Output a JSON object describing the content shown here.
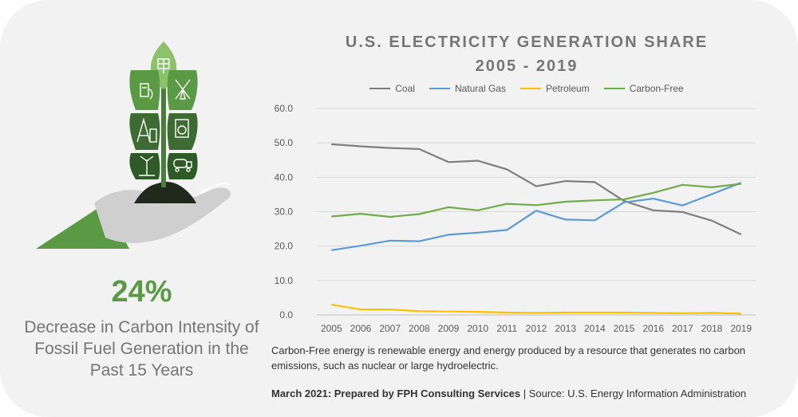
{
  "stat": {
    "value": "24%",
    "description": "Decrease in Carbon Intensity of Fossil Fuel Generation in the Past 15 Years"
  },
  "title": {
    "line1": "U.S. ELECTRICITY GENERATION SHARE",
    "line2": "2005 - 2019"
  },
  "note": "Carbon-Free energy is renewable energy and energy produced by a resource that generates no carbon emissions, such as nuclear or large hydroelectric.",
  "credit": {
    "prepared_by": "March 2021: Prepared by FPH Consulting Services",
    "separator": " | ",
    "source": "Source: U.S. Energy Information Administration"
  },
  "colors": {
    "accent_green": "#5b9a44",
    "dark_green": "#3d6b32",
    "light_green": "#8bc26b",
    "hand_gray": "#cfcfcf",
    "soil": "#1f2a1d"
  },
  "icons": [
    "solar-panel-icon",
    "ev-charger-icon",
    "windmill-icon",
    "oil-derrick-icon",
    "washer-icon",
    "wind-turbine-icon",
    "tanker-truck-icon"
  ],
  "chart_data": {
    "type": "line",
    "title": "U.S. ELECTRICITY GENERATION SHARE 2005 - 2019",
    "categories": [
      "2005",
      "2006",
      "2007",
      "2008",
      "2009",
      "2010",
      "2011",
      "2012",
      "2013",
      "2014",
      "2015",
      "2016",
      "2017",
      "2018",
      "2019"
    ],
    "ylim": [
      0,
      60
    ],
    "yticks": [
      "0.0",
      "10.0",
      "20.0",
      "30.0",
      "40.0",
      "50.0",
      "60.0"
    ],
    "grid": true,
    "legend_position": "top",
    "series": [
      {
        "name": "Coal",
        "color": "#7f7f7f",
        "values": [
          49.6,
          49.0,
          48.5,
          48.2,
          44.4,
          44.8,
          42.3,
          37.4,
          38.9,
          38.6,
          33.1,
          30.4,
          29.9,
          27.4,
          23.4
        ]
      },
      {
        "name": "Natural Gas",
        "color": "#5b9bd5",
        "values": [
          18.8,
          20.1,
          21.6,
          21.4,
          23.3,
          23.9,
          24.7,
          30.3,
          27.7,
          27.5,
          32.7,
          33.8,
          31.8,
          35.1,
          38.4
        ]
      },
      {
        "name": "Petroleum",
        "color": "#ffc000",
        "values": [
          3.0,
          1.6,
          1.6,
          1.1,
          1.0,
          0.9,
          0.7,
          0.6,
          0.7,
          0.7,
          0.7,
          0.6,
          0.5,
          0.6,
          0.4
        ]
      },
      {
        "name": "Carbon-Free",
        "color": "#70ad47",
        "values": [
          28.6,
          29.4,
          28.5,
          29.3,
          31.3,
          30.4,
          32.3,
          31.9,
          32.9,
          33.3,
          33.6,
          35.5,
          37.8,
          37.1,
          38.1
        ]
      }
    ]
  }
}
